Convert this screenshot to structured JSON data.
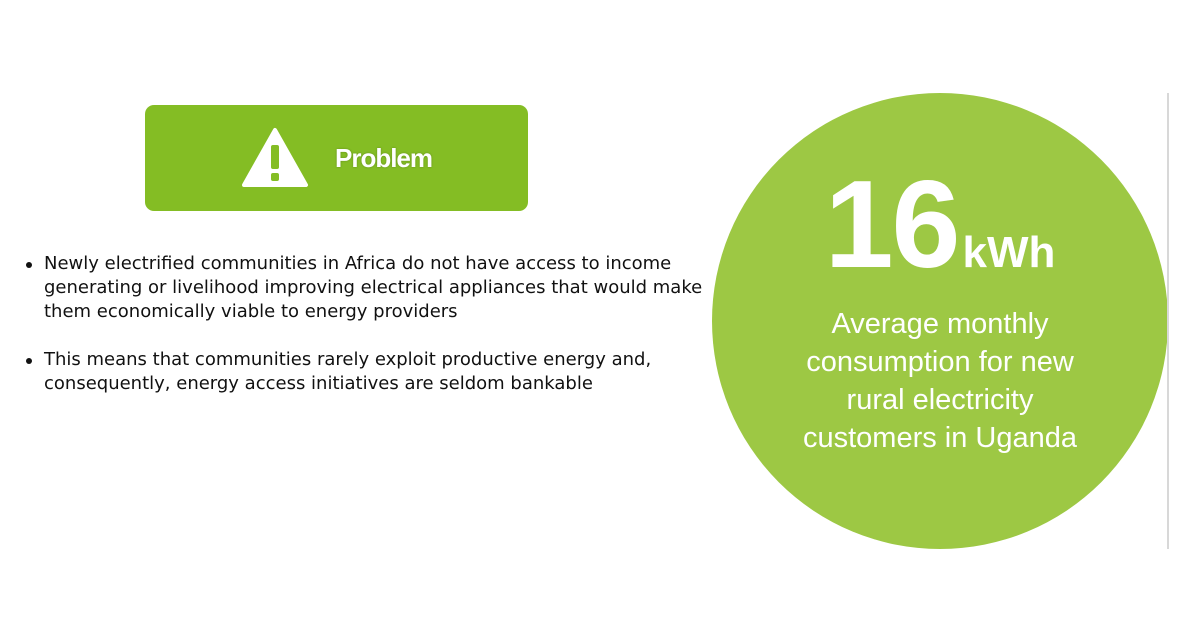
{
  "problem_banner": {
    "icon": "warning-icon",
    "label": "Problem",
    "color": "#84bd24"
  },
  "bullets": [
    {
      "text": "Newly electrified communities in Africa do not have access to income generating or livelihood improving electrical appliances that would make them economically viable to energy providers"
    },
    {
      "text": "This means that communities rarely exploit productive energy and, consequently, energy access initiatives are seldom bankable"
    }
  ],
  "stat": {
    "value": "16",
    "unit": "kWh",
    "caption": "Average monthly consumption for new rural electricity customers in Uganda",
    "color": "#9dc844"
  }
}
